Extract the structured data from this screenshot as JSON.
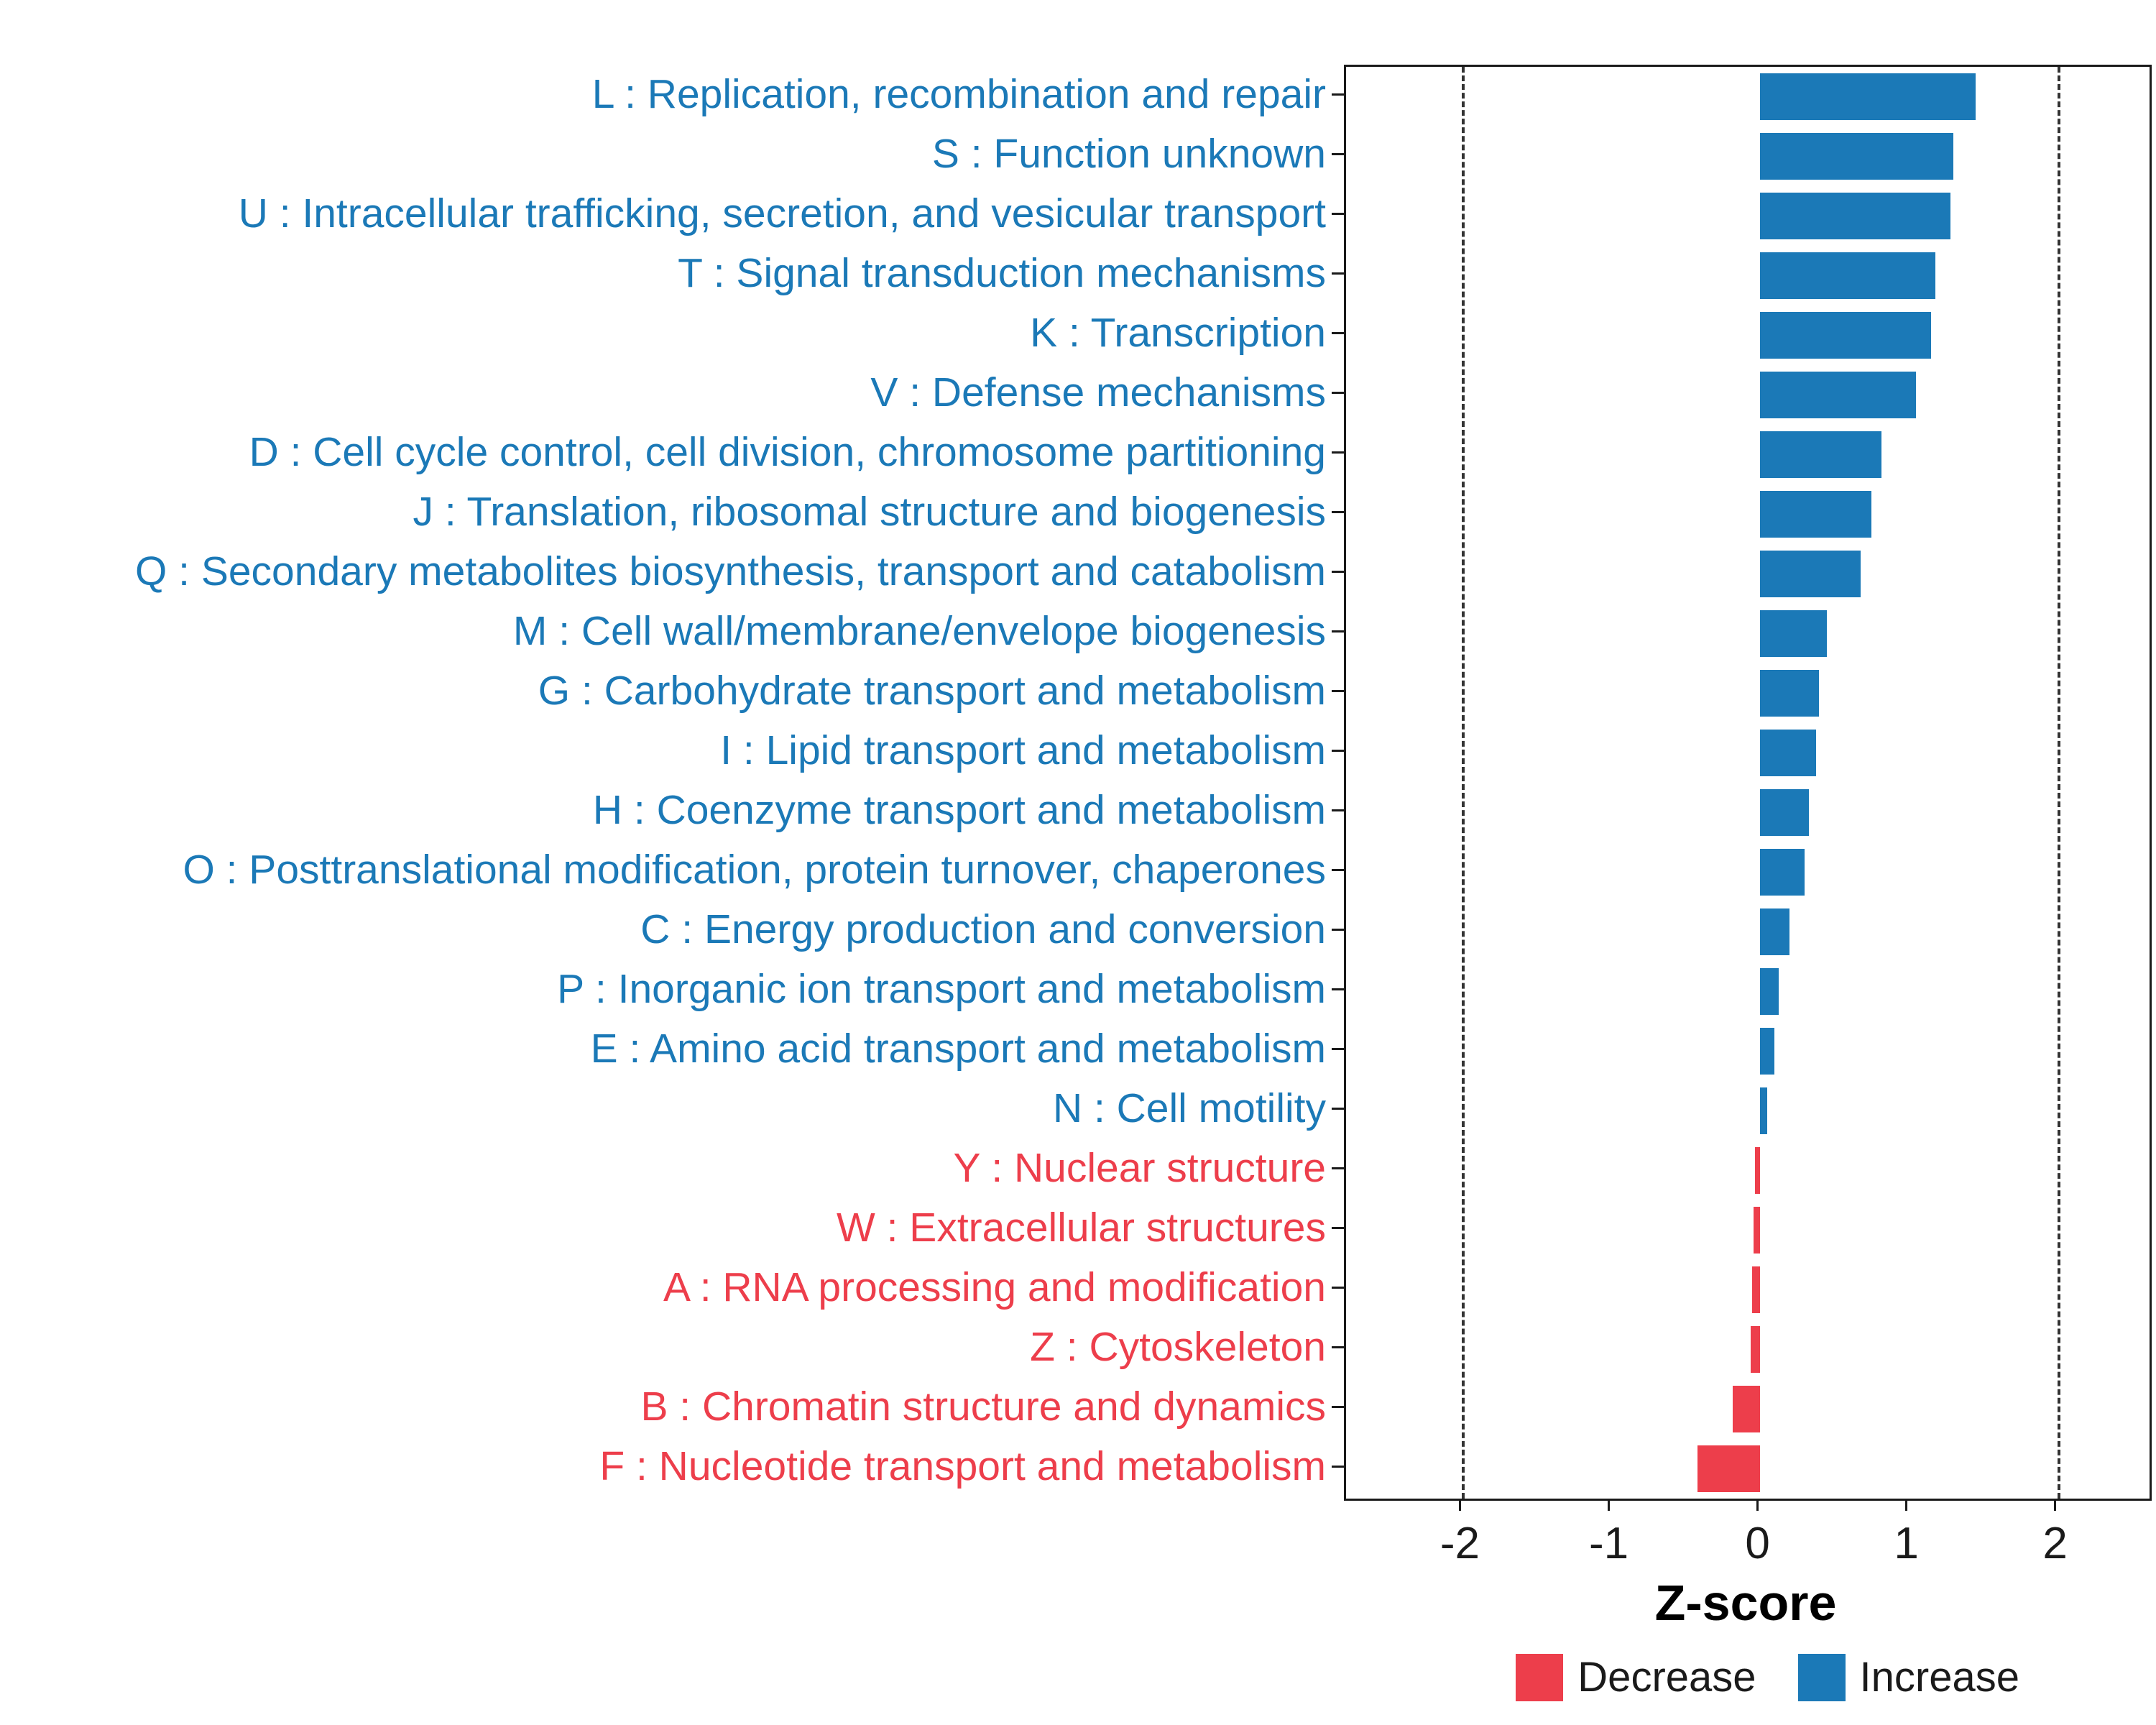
{
  "colors": {
    "increase": "#1B79B7",
    "decrease": "#ED3E4B",
    "axis": "#1a1a1a",
    "dashed_line": "#333333"
  },
  "chart_data": {
    "type": "bar",
    "orientation": "horizontal",
    "title": "",
    "xlabel": "Z-score",
    "ylabel": "",
    "xlim": [
      -2.78,
      2.62
    ],
    "x_ticks": [
      -2,
      -1,
      0,
      1,
      2
    ],
    "x_tick_labels": [
      "-2",
      "-1",
      "0",
      "1",
      "2"
    ],
    "reference_dashed_lines_at": [
      -2,
      2
    ],
    "grid": false,
    "legend_position": "bottom-right",
    "legend": [
      {
        "label": "Decrease",
        "color": "#ED3E4B"
      },
      {
        "label": "Increase",
        "color": "#1B79B7"
      }
    ],
    "bars": [
      {
        "label": "L : Replication, recombination and repair",
        "value": 1.45,
        "direction": "increase"
      },
      {
        "label": "S : Function unknown",
        "value": 1.3,
        "direction": "increase"
      },
      {
        "label": "U : Intracellular trafficking, secretion, and vesicular transport",
        "value": 1.28,
        "direction": "increase"
      },
      {
        "label": "T : Signal transduction mechanisms",
        "value": 1.18,
        "direction": "increase"
      },
      {
        "label": "K : Transcription",
        "value": 1.15,
        "direction": "increase"
      },
      {
        "label": "V : Defense mechanisms",
        "value": 1.05,
        "direction": "increase"
      },
      {
        "label": "D : Cell cycle control, cell division, chromosome partitioning",
        "value": 0.82,
        "direction": "increase"
      },
      {
        "label": "J : Translation, ribosomal structure and biogenesis",
        "value": 0.75,
        "direction": "increase"
      },
      {
        "label": "Q : Secondary metabolites biosynthesis, transport and catabolism",
        "value": 0.68,
        "direction": "increase"
      },
      {
        "label": "M : Cell wall/membrane/envelope biogenesis",
        "value": 0.45,
        "direction": "increase"
      },
      {
        "label": "G : Carbohydrate transport and metabolism",
        "value": 0.4,
        "direction": "increase"
      },
      {
        "label": "I : Lipid transport and metabolism",
        "value": 0.38,
        "direction": "increase"
      },
      {
        "label": "H : Coenzyme transport and metabolism",
        "value": 0.33,
        "direction": "increase"
      },
      {
        "label": "O : Posttranslational modification, protein turnover, chaperones",
        "value": 0.3,
        "direction": "increase"
      },
      {
        "label": "C : Energy production and conversion",
        "value": 0.2,
        "direction": "increase"
      },
      {
        "label": "P : Inorganic ion transport and metabolism",
        "value": 0.13,
        "direction": "increase"
      },
      {
        "label": "E : Amino acid transport and metabolism",
        "value": 0.1,
        "direction": "increase"
      },
      {
        "label": "N : Cell motility",
        "value": 0.05,
        "direction": "increase"
      },
      {
        "label": "Y : Nuclear structure",
        "value": -0.03,
        "direction": "decrease"
      },
      {
        "label": "W : Extracellular structures",
        "value": -0.04,
        "direction": "decrease"
      },
      {
        "label": "A : RNA processing and modification",
        "value": -0.05,
        "direction": "decrease"
      },
      {
        "label": "Z : Cytoskeleton",
        "value": -0.06,
        "direction": "decrease"
      },
      {
        "label": "B : Chromatin structure and dynamics",
        "value": -0.18,
        "direction": "decrease"
      },
      {
        "label": "F : Nucleotide transport and metabolism",
        "value": -0.42,
        "direction": "decrease"
      }
    ]
  }
}
